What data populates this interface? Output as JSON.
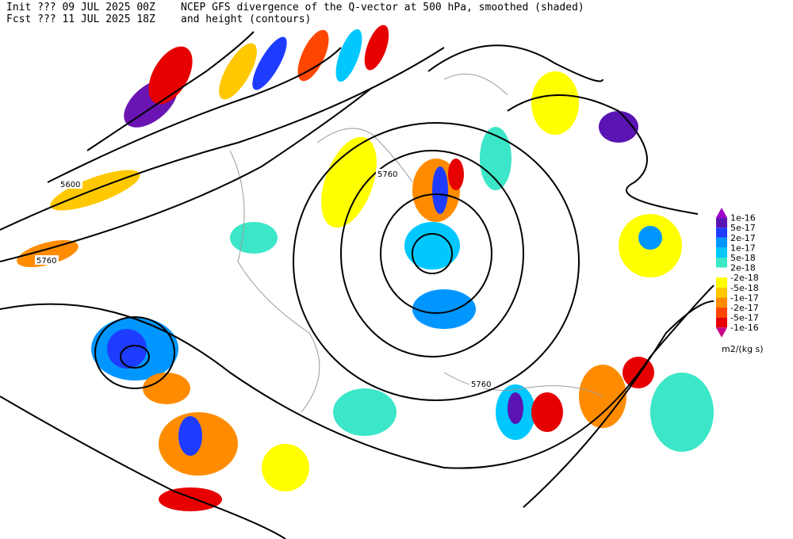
{
  "header": {
    "init": "Init  ??? 09 JUL 2025 00Z",
    "fcst": "Fcst ??? 11 JUL 2025 18Z",
    "title": "NCEP GFS divergence of the Q-vector at 500 hPa, smoothed (shaded)",
    "subtitle": "and height (contours)"
  },
  "contour_labels": [
    5600,
    5760,
    5760,
    5760
  ],
  "legend": {
    "colors": [
      "#a000c8",
      "#5a14b4",
      "#1e3cff",
      "#0096ff",
      "#00c8ff",
      "#3ce6c8",
      "#ffffff",
      "#ffff00",
      "#ffc800",
      "#ff8c00",
      "#ff4600",
      "#e60000",
      "#c8008c"
    ],
    "labels": [
      "1e-16",
      "5e-17",
      "2e-17",
      "1e-17",
      "5e-18",
      "2e-18",
      "-2e-18",
      "-5e-18",
      "-1e-17",
      "-2e-17",
      "-5e-17",
      "-1e-16"
    ],
    "units": "m2/(kg s)"
  }
}
